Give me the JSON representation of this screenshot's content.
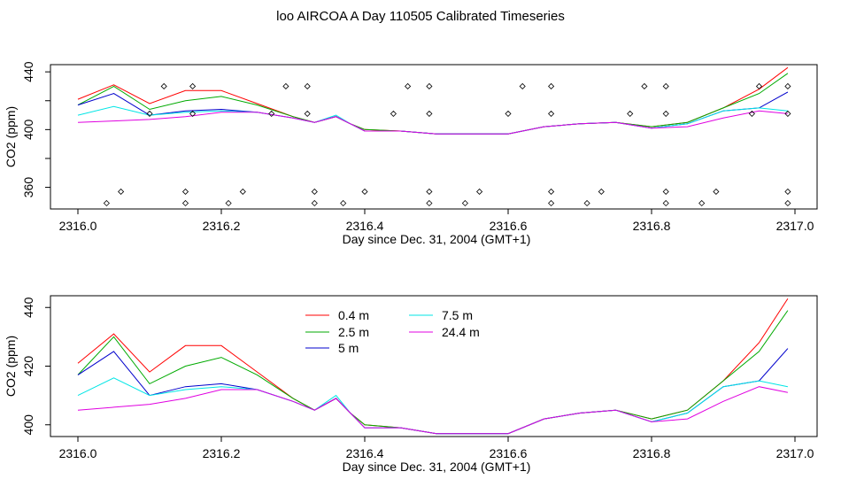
{
  "title": "loo AIRCOA A  Day 110505  Calibrated Timeseries",
  "chart_data": [
    {
      "type": "scatter",
      "xlabel": "Day since Dec. 31, 2004 (GMT+1)",
      "ylabel": "CO2 (ppm)",
      "xlim": [
        2316.0,
        2317.0
      ],
      "ylim": [
        345,
        445
      ],
      "xticks": [
        "2316.0",
        "2316.2",
        "2316.4",
        "2316.6",
        "2316.8",
        "2317.0"
      ],
      "yticks": [
        "360",
        "380",
        "400",
        "420",
        "440"
      ],
      "ytick_labels": [
        "360",
        "",
        "400",
        "",
        "440"
      ],
      "series_ref": "same five height series as panel 2",
      "markers": [
        [
          2316.04,
          349
        ],
        [
          2316.06,
          357
        ],
        [
          2316.1,
          411
        ],
        [
          2316.12,
          430
        ],
        [
          2316.16,
          411
        ],
        [
          2316.16,
          430
        ],
        [
          2316.15,
          357
        ],
        [
          2316.15,
          349
        ],
        [
          2316.21,
          349
        ],
        [
          2316.23,
          357
        ],
        [
          2316.27,
          411
        ],
        [
          2316.29,
          430
        ],
        [
          2316.32,
          430
        ],
        [
          2316.32,
          411
        ],
        [
          2316.33,
          357
        ],
        [
          2316.33,
          349
        ],
        [
          2316.37,
          349
        ],
        [
          2316.4,
          357
        ],
        [
          2316.44,
          411
        ],
        [
          2316.46,
          430
        ],
        [
          2316.49,
          430
        ],
        [
          2316.49,
          411
        ],
        [
          2316.49,
          357
        ],
        [
          2316.49,
          349
        ],
        [
          2316.54,
          349
        ],
        [
          2316.56,
          357
        ],
        [
          2316.6,
          411
        ],
        [
          2316.62,
          430
        ],
        [
          2316.66,
          430
        ],
        [
          2316.66,
          411
        ],
        [
          2316.66,
          357
        ],
        [
          2316.66,
          349
        ],
        [
          2316.71,
          349
        ],
        [
          2316.73,
          357
        ],
        [
          2316.77,
          411
        ],
        [
          2316.79,
          430
        ],
        [
          2316.82,
          430
        ],
        [
          2316.82,
          411
        ],
        [
          2316.82,
          357
        ],
        [
          2316.82,
          349
        ],
        [
          2316.87,
          349
        ],
        [
          2316.89,
          357
        ],
        [
          2316.94,
          411
        ],
        [
          2316.95,
          430
        ],
        [
          2316.99,
          430
        ],
        [
          2316.99,
          411
        ],
        [
          2316.99,
          357
        ],
        [
          2316.99,
          349
        ]
      ]
    },
    {
      "type": "line",
      "xlabel": "Day since Dec. 31, 2004 (GMT+1)",
      "ylabel": "CO2 (ppm)",
      "xlim": [
        2316.0,
        2317.0
      ],
      "ylim": [
        396,
        444
      ],
      "xticks": [
        "2316.0",
        "2316.2",
        "2316.4",
        "2316.6",
        "2316.8",
        "2317.0"
      ],
      "yticks": [
        "400",
        "420",
        "440"
      ],
      "legend": [
        "0.4 m",
        "2.5 m",
        "5 m",
        "7.5 m",
        "24.4 m"
      ],
      "legend_placement": "top-center",
      "x": [
        2316.0,
        2316.05,
        2316.1,
        2316.15,
        2316.2,
        2316.25,
        2316.3,
        2316.33,
        2316.36,
        2316.38,
        2316.4,
        2316.45,
        2316.5,
        2316.55,
        2316.6,
        2316.65,
        2316.7,
        2316.75,
        2316.8,
        2316.85,
        2316.9,
        2316.95,
        2316.99
      ],
      "series": [
        {
          "name": "0.4 m",
          "color": "#ff0000",
          "values": [
            421,
            431,
            418,
            427,
            427,
            418,
            409,
            405,
            409,
            404,
            400,
            399,
            397,
            397,
            397,
            402,
            404,
            405,
            402,
            405,
            415,
            428,
            443
          ]
        },
        {
          "name": "2.5 m",
          "color": "#00aa00",
          "values": [
            417,
            430,
            414,
            420,
            423,
            417,
            409,
            405,
            409,
            404,
            400,
            399,
            397,
            397,
            397,
            402,
            404,
            405,
            402,
            405,
            415,
            425,
            439
          ]
        },
        {
          "name": "5 m",
          "color": "#0000cc",
          "values": [
            417,
            425,
            410,
            413,
            414,
            412,
            408,
            405,
            409,
            404,
            399,
            399,
            397,
            397,
            397,
            402,
            404,
            405,
            401,
            404,
            413,
            415,
            426
          ]
        },
        {
          "name": "7.5 m",
          "color": "#00e5e5",
          "values": [
            410,
            416,
            410,
            412,
            413,
            412,
            408,
            405,
            410,
            404,
            399,
            399,
            397,
            397,
            397,
            402,
            404,
            405,
            401,
            404,
            413,
            415,
            413
          ]
        },
        {
          "name": "24.4 m",
          "color": "#e000e0",
          "values": [
            405,
            406,
            407,
            409,
            412,
            412,
            408,
            405,
            409,
            404,
            399,
            399,
            397,
            397,
            397,
            402,
            404,
            405,
            401,
            402,
            408,
            413,
            411
          ]
        }
      ]
    }
  ]
}
